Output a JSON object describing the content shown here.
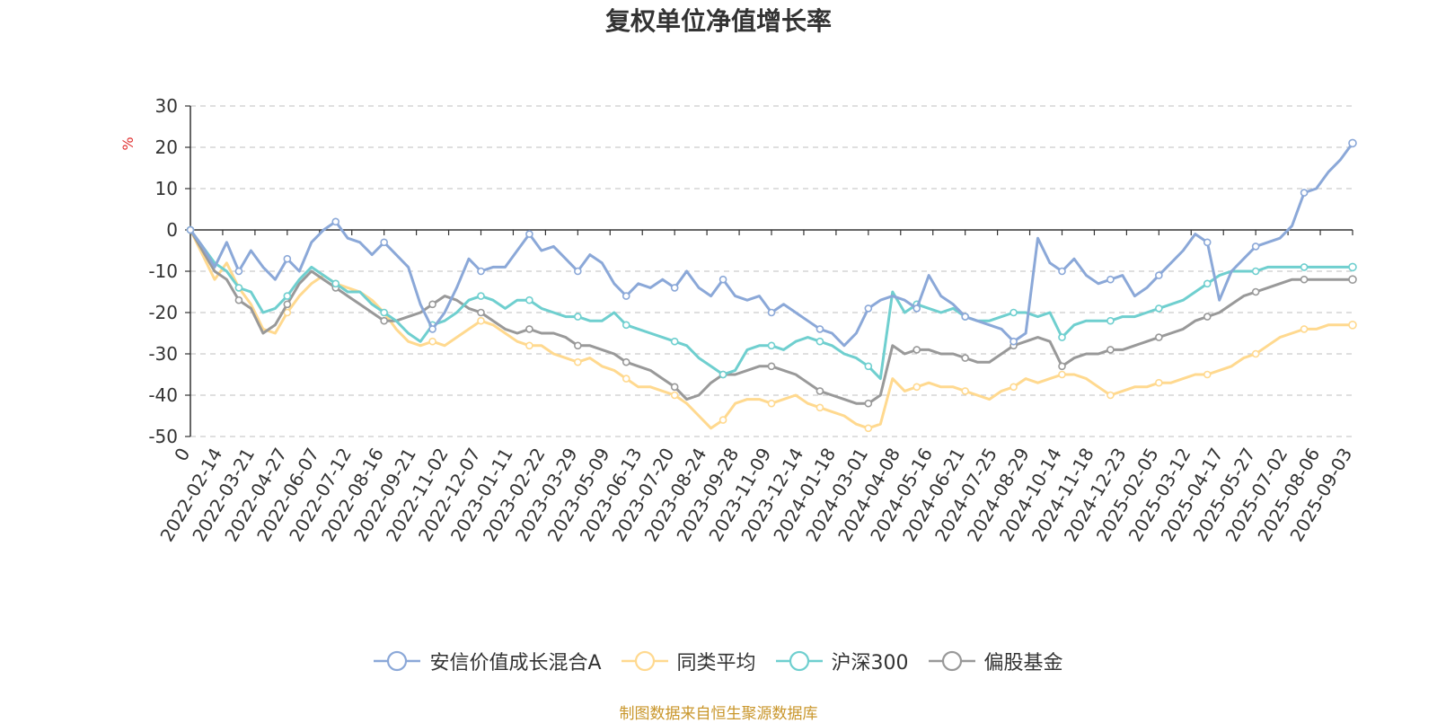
{
  "title": "复权单位净值增长率",
  "unit_label": "%",
  "source_note": "制图数据来自恒生聚源数据库",
  "chart_data": {
    "type": "line",
    "title": "复权单位净值增长率",
    "ylabel": "%",
    "ylim": [
      -50,
      30
    ],
    "yticks": [
      "30",
      "20",
      "10",
      "0",
      "-10",
      "-20",
      "-30",
      "-40",
      "-50"
    ],
    "grid": true,
    "legend_position": "bottom",
    "x_start_label": "0",
    "x_labels": [
      "2022-02-14",
      "2022-03-21",
      "2022-04-27",
      "2022-06-07",
      "2022-07-12",
      "2022-08-16",
      "2022-09-21",
      "2022-11-02",
      "2022-12-07",
      "2023-01-11",
      "2023-02-22",
      "2023-03-29",
      "2023-05-09",
      "2023-06-13",
      "2023-07-20",
      "2023-08-24",
      "2023-09-28",
      "2023-11-09",
      "2023-12-14",
      "2024-01-18",
      "2024-03-01",
      "2024-04-08",
      "2024-05-16",
      "2024-06-21",
      "2024-07-25",
      "2024-08-29",
      "2024-10-14",
      "2024-11-18",
      "2024-12-23",
      "2025-02-05",
      "2025-03-12",
      "2025-04-17",
      "2025-05-27",
      "2025-07-02",
      "2025-08-06",
      "2025-09-03"
    ],
    "series": [
      {
        "name": "安信价值成长混合A",
        "color": "#8ba8d8",
        "values": [
          0,
          -4,
          -9,
          -3,
          -10,
          -5,
          -9,
          -12,
          -7,
          -10,
          -3,
          0,
          2,
          -2,
          -3,
          -6,
          -3,
          -6,
          -9,
          -18,
          -24,
          -20,
          -14,
          -7,
          -10,
          -9,
          -9,
          -5,
          -1,
          -5,
          -4,
          -7,
          -10,
          -6,
          -8,
          -13,
          -16,
          -13,
          -14,
          -12,
          -14,
          -10,
          -14,
          -16,
          -12,
          -16,
          -17,
          -16,
          -20,
          -18,
          -20,
          -22,
          -24,
          -25,
          -28,
          -25,
          -19,
          -17,
          -16,
          -17,
          -19,
          -11,
          -16,
          -18,
          -21,
          -22,
          -23,
          -24,
          -27,
          -25,
          -2,
          -8,
          -10,
          -7,
          -11,
          -13,
          -12,
          -11,
          -16,
          -14,
          -11,
          -8,
          -5,
          -1,
          -3,
          -17,
          -10,
          -7,
          -4,
          -3,
          -2,
          1,
          9,
          10,
          14,
          17,
          21
        ]
      },
      {
        "name": "同类平均",
        "color": "#ffd98f",
        "values": [
          0,
          -6,
          -12,
          -8,
          -14,
          -18,
          -24,
          -25,
          -20,
          -16,
          -13,
          -11,
          -13,
          -14,
          -15,
          -17,
          -20,
          -24,
          -27,
          -28,
          -27,
          -28,
          -26,
          -24,
          -22,
          -23,
          -25,
          -27,
          -28,
          -28,
          -30,
          -31,
          -32,
          -31,
          -33,
          -34,
          -36,
          -38,
          -38,
          -39,
          -40,
          -42,
          -45,
          -48,
          -46,
          -42,
          -41,
          -41,
          -42,
          -41,
          -40,
          -42,
          -43,
          -44,
          -45,
          -47,
          -48,
          -47,
          -36,
          -39,
          -38,
          -37,
          -38,
          -38,
          -39,
          -40,
          -41,
          -39,
          -38,
          -36,
          -37,
          -36,
          -35,
          -35,
          -36,
          -38,
          -40,
          -39,
          -38,
          -38,
          -37,
          -37,
          -36,
          -35,
          -35,
          -34,
          -33,
          -31,
          -30,
          -28,
          -26,
          -25,
          -24,
          -24,
          -23,
          -23,
          -23
        ]
      },
      {
        "name": "沪深300",
        "color": "#6fcfcf",
        "values": [
          0,
          -4,
          -8,
          -10,
          -14,
          -15,
          -20,
          -19,
          -16,
          -12,
          -9,
          -11,
          -13,
          -15,
          -15,
          -18,
          -20,
          -22,
          -25,
          -27,
          -23,
          -22,
          -20,
          -17,
          -16,
          -17,
          -19,
          -17,
          -17,
          -19,
          -20,
          -21,
          -21,
          -22,
          -22,
          -20,
          -23,
          -24,
          -25,
          -26,
          -27,
          -28,
          -31,
          -33,
          -35,
          -34,
          -29,
          -28,
          -28,
          -29,
          -27,
          -26,
          -27,
          -28,
          -30,
          -31,
          -33,
          -36,
          -15,
          -20,
          -18,
          -19,
          -20,
          -19,
          -21,
          -22,
          -22,
          -21,
          -20,
          -20,
          -21,
          -20,
          -26,
          -23,
          -22,
          -22,
          -22,
          -21,
          -21,
          -20,
          -19,
          -18,
          -17,
          -15,
          -13,
          -11,
          -10,
          -10,
          -10,
          -9,
          -9,
          -9,
          -9,
          -9,
          -9,
          -9,
          -9
        ]
      },
      {
        "name": "偏股基金",
        "color": "#999999",
        "values": [
          0,
          -5,
          -10,
          -12,
          -17,
          -19,
          -25,
          -23,
          -18,
          -13,
          -10,
          -12,
          -14,
          -16,
          -18,
          -20,
          -22,
          -22,
          -21,
          -20,
          -18,
          -16,
          -17,
          -19,
          -20,
          -22,
          -24,
          -25,
          -24,
          -25,
          -25,
          -26,
          -28,
          -28,
          -29,
          -30,
          -32,
          -33,
          -34,
          -36,
          -38,
          -41,
          -40,
          -37,
          -35,
          -35,
          -34,
          -33,
          -33,
          -34,
          -35,
          -37,
          -39,
          -40,
          -41,
          -42,
          -42,
          -40,
          -28,
          -30,
          -29,
          -29,
          -30,
          -30,
          -31,
          -32,
          -32,
          -30,
          -28,
          -27,
          -26,
          -27,
          -33,
          -31,
          -30,
          -30,
          -29,
          -29,
          -28,
          -27,
          -26,
          -25,
          -24,
          -22,
          -21,
          -20,
          -18,
          -16,
          -15,
          -14,
          -13,
          -12,
          -12,
          -12,
          -12,
          -12,
          -12
        ]
      }
    ]
  }
}
